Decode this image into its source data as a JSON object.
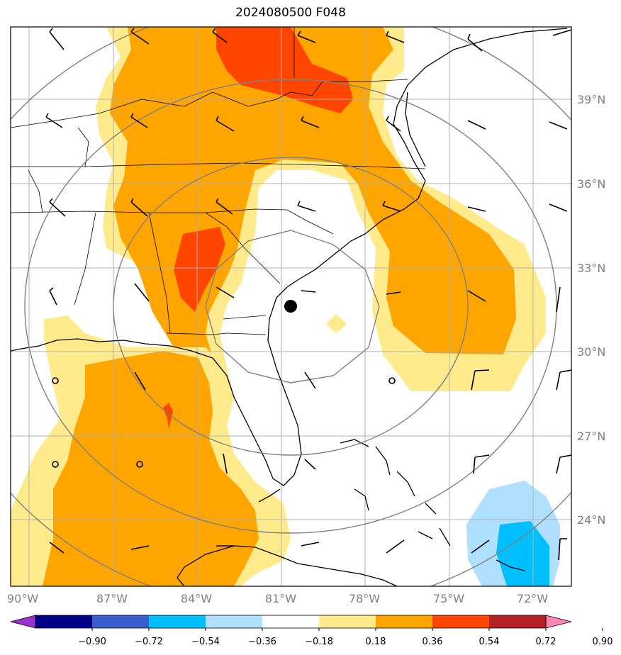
{
  "title": "2024080500 F048",
  "latitude_labels": [
    "39°N",
    "36°N",
    "33°N",
    "30°N",
    "27°N",
    "24°N"
  ],
  "longitude_labels": [
    "90°W",
    "87°W",
    "84°W",
    "81°W",
    "78°W",
    "75°W",
    "72°W"
  ],
  "colorbar": {
    "tick_labels": [
      "−0.90",
      "−0.72",
      "−0.54",
      "−0.36",
      "−0.18",
      "0.18",
      "0.36",
      "0.54",
      "0.72",
      "0.90"
    ],
    "colors": [
      "#9932cc",
      "#00008b",
      "#3a5fcd",
      "#00bfff",
      "#b0e0ff",
      "#ffffff",
      "#ffeb8c",
      "#ffa500",
      "#ff4500",
      "#b22222",
      "#ff85b4"
    ]
  },
  "center_marker": "black-dot",
  "colors": {
    "range_rings": "#808080",
    "gridlines": "#b0b0b0",
    "coastlines": "#000000"
  }
}
